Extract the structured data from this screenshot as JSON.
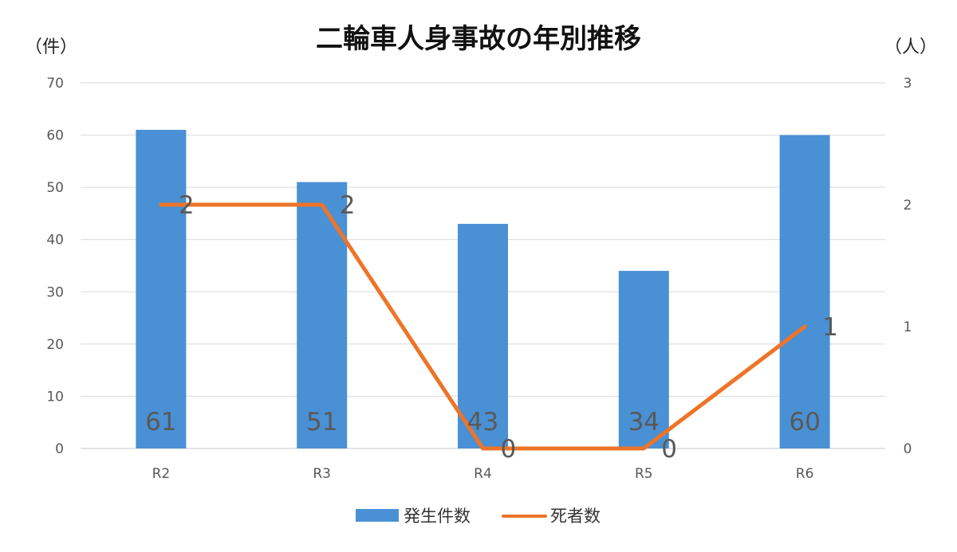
{
  "chart_data": {
    "type": "bar",
    "title": "二輪車人身事故の年別推移",
    "categories": [
      "R2",
      "R3",
      "R4",
      "R5",
      "R6"
    ],
    "series": [
      {
        "name": "発生件数",
        "type": "bar",
        "axis": "left",
        "values": [
          61,
          51,
          43,
          34,
          60
        ],
        "color": "#4A90D4"
      },
      {
        "name": "死者数",
        "type": "line",
        "axis": "right",
        "values": [
          2,
          2,
          0,
          0,
          1
        ],
        "color": "#ED7428"
      }
    ],
    "y_left": {
      "unit_label": "（件）",
      "lim": [
        0,
        70
      ],
      "ticks": [
        0,
        10,
        20,
        30,
        40,
        50,
        60,
        70
      ]
    },
    "y_right": {
      "unit_label": "（人）",
      "lim": [
        0,
        3
      ],
      "ticks": [
        0,
        1,
        2,
        3
      ]
    },
    "grid": true,
    "legend_position": "bottom",
    "data_labels": true
  }
}
